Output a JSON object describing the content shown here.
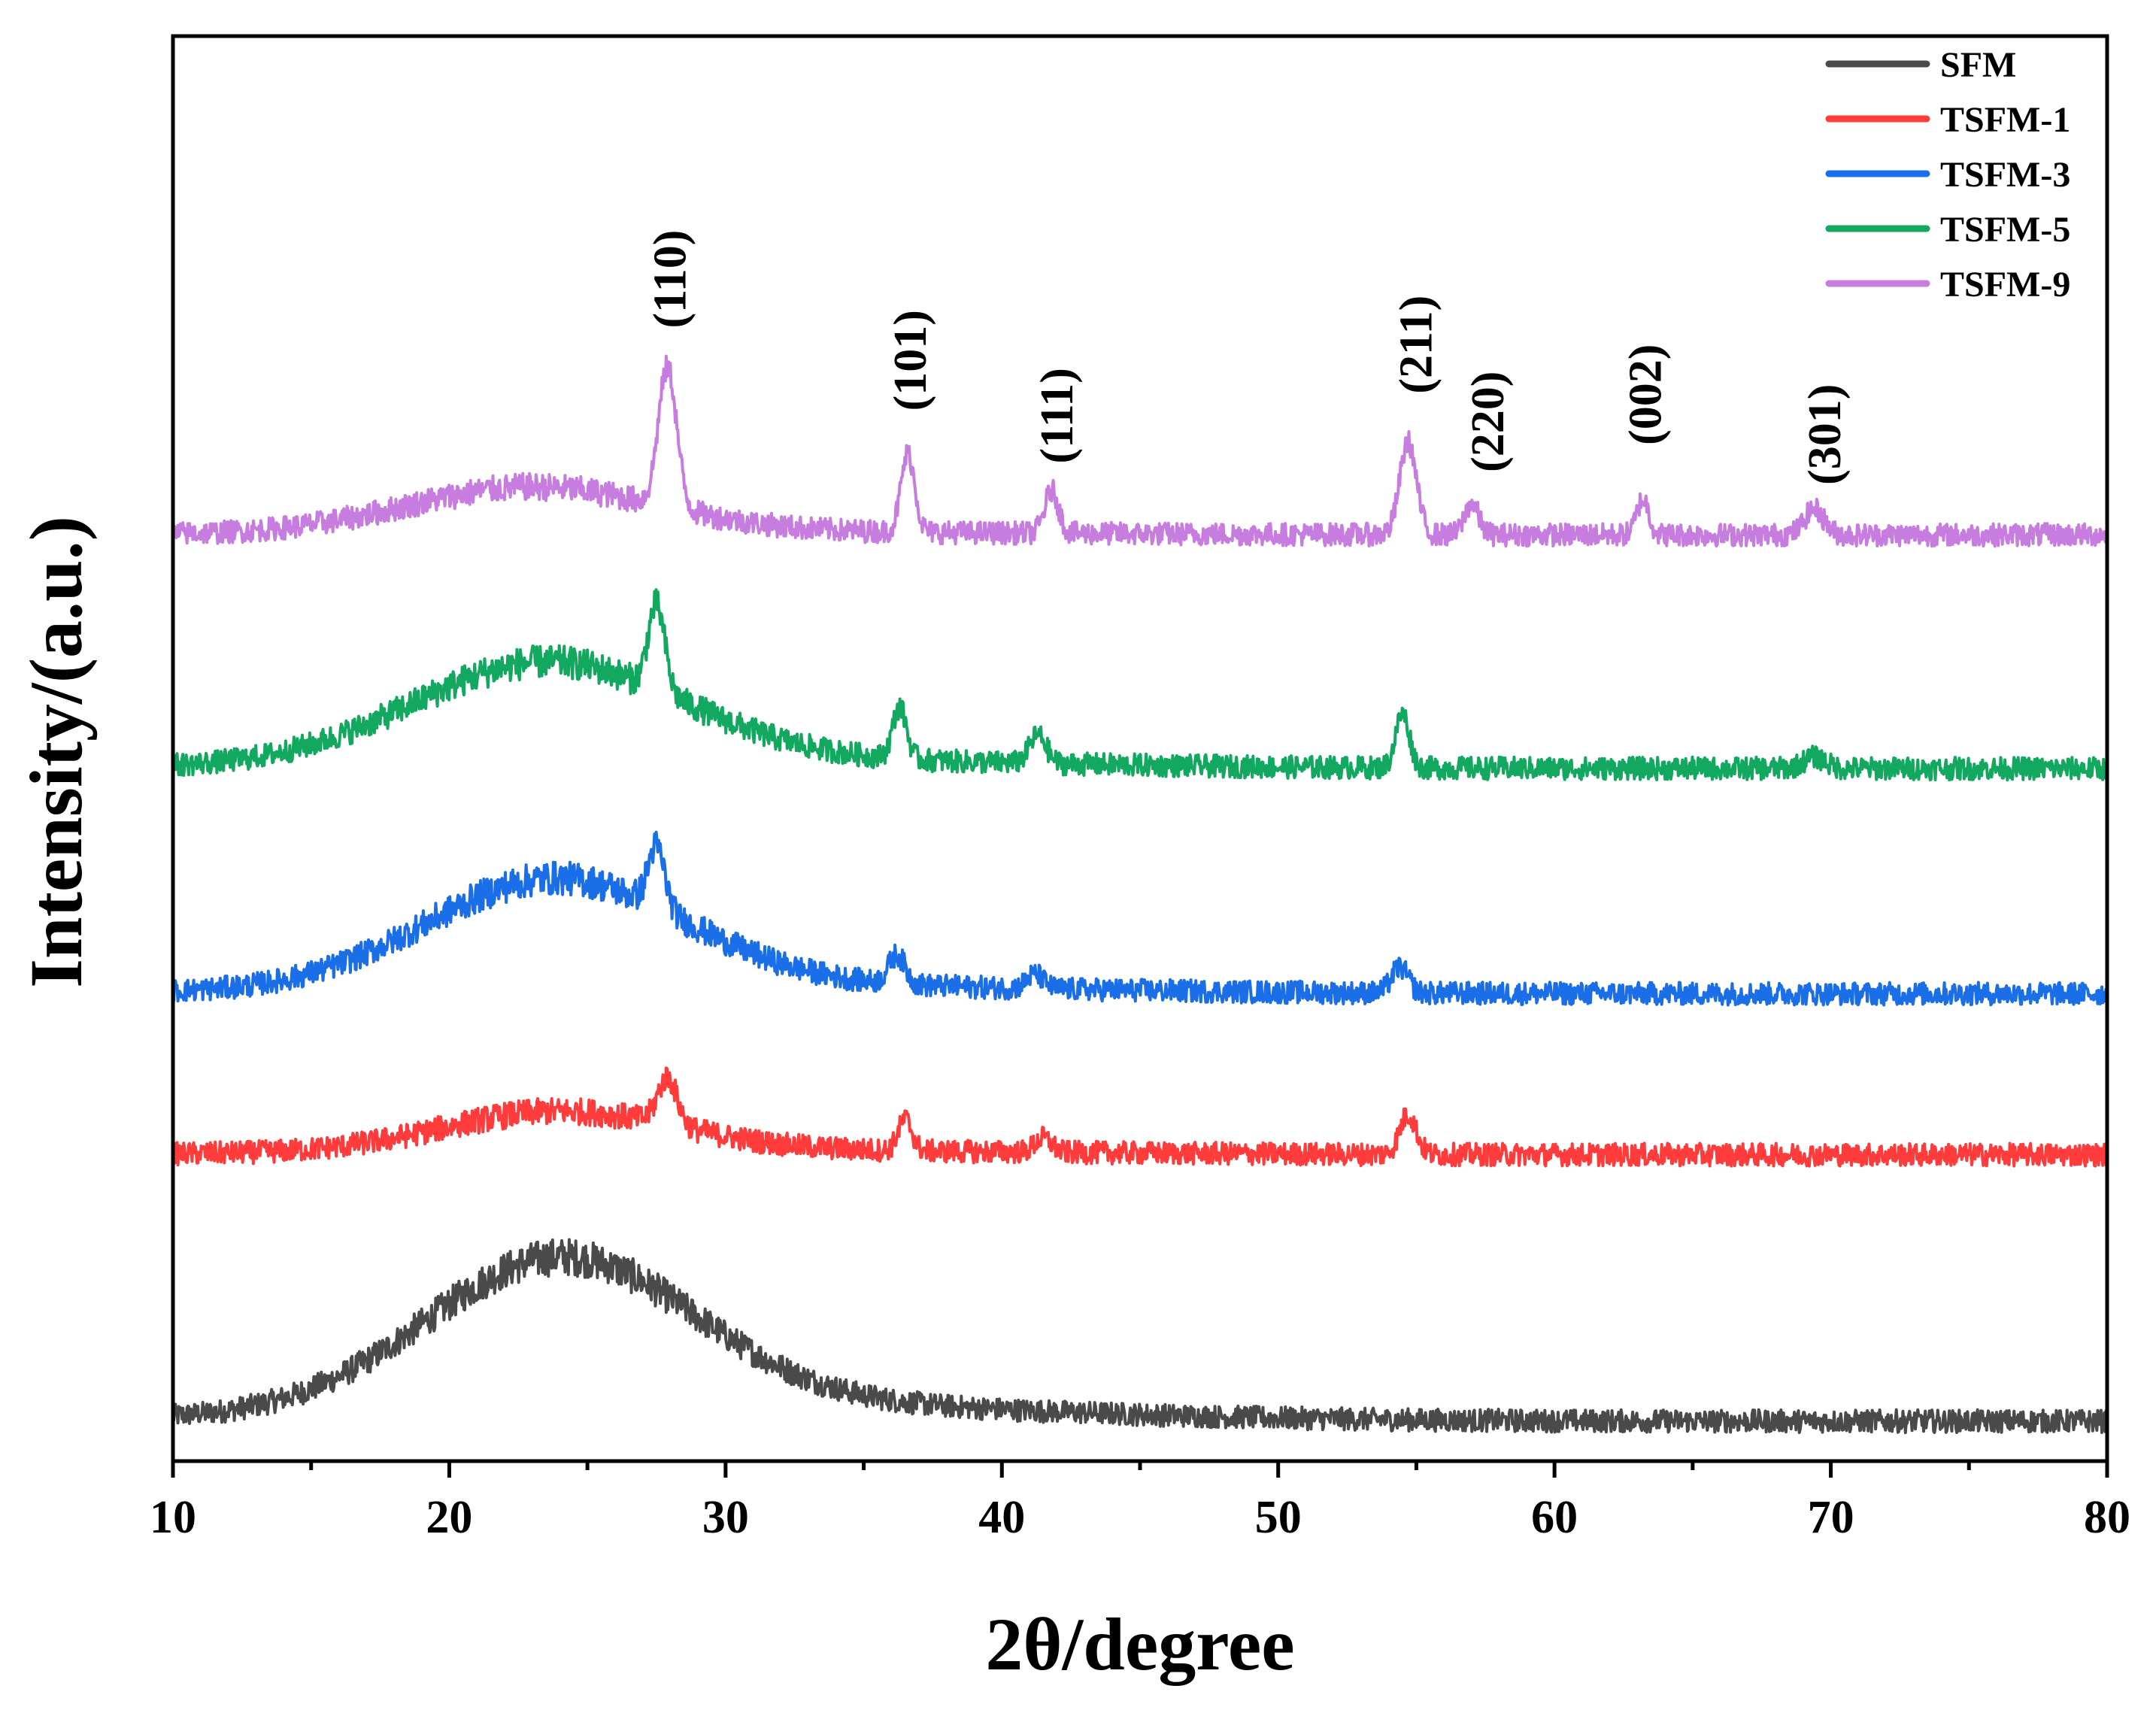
{
  "chart_data": {
    "type": "line",
    "title": "",
    "xlabel": "2θ/degree",
    "ylabel": "Intensity/(a.u.)",
    "xlim": [
      10,
      80
    ],
    "ylim": [
      0,
      100
    ],
    "x_ticks": [
      10,
      20,
      30,
      40,
      50,
      60,
      70,
      80
    ],
    "x_tick_labels": [
      "10",
      "20",
      "30",
      "40",
      "50",
      "60",
      "70",
      "80"
    ],
    "y_ticks_shown": false,
    "grid": false,
    "legend_position": "top-right",
    "noise_amplitude": 1.6,
    "series": [
      {
        "name": "SFM",
        "color": "#4a4a4a",
        "baseline": 2.8,
        "hump": {
          "center": 24,
          "width": 4.8,
          "height": 10.5
        },
        "tail": {
          "center": 30,
          "width": 11,
          "height": 1.2
        },
        "peaks": []
      },
      {
        "name": "TSFM-1",
        "color": "#ff3b3b",
        "baseline": 21.5,
        "hump": {
          "center": 24,
          "width": 4.2,
          "height": 2.8
        },
        "tail": {
          "center": 30,
          "width": 11,
          "height": 0.3
        },
        "peaks": [
          {
            "x": 27.9,
            "height": 3.3,
            "width": 0.35
          },
          {
            "x": 36.5,
            "height": 2.2,
            "width": 0.25
          },
          {
            "x": 41.5,
            "height": 1.0,
            "width": 0.3
          },
          {
            "x": 54.7,
            "height": 2.8,
            "width": 0.3
          }
        ]
      },
      {
        "name": "TSFM-3",
        "color": "#1a6ee8",
        "baseline": 32.8,
        "hump": {
          "center": 23.8,
          "width": 4.6,
          "height": 7.6
        },
        "tail": {
          "center": 30,
          "width": 11,
          "height": 0.6
        },
        "peaks": [
          {
            "x": 27.5,
            "height": 4.3,
            "width": 0.3
          },
          {
            "x": 36.2,
            "height": 2.0,
            "width": 0.3
          },
          {
            "x": 41.2,
            "height": 1.0,
            "width": 0.3
          },
          {
            "x": 54.4,
            "height": 1.8,
            "width": 0.3
          }
        ]
      },
      {
        "name": "TSFM-5",
        "color": "#12a860",
        "baseline": 48.6,
        "hump": {
          "center": 23.5,
          "width": 4.8,
          "height": 7.0
        },
        "tail": {
          "center": 30,
          "width": 11,
          "height": 0.6
        },
        "peaks": [
          {
            "x": 27.5,
            "height": 6.0,
            "width": 0.3
          },
          {
            "x": 36.3,
            "height": 3.6,
            "width": 0.25
          },
          {
            "x": 41.3,
            "height": 2.0,
            "width": 0.3
          },
          {
            "x": 54.5,
            "height": 3.8,
            "width": 0.25
          },
          {
            "x": 69.4,
            "height": 0.8,
            "width": 0.4
          }
        ]
      },
      {
        "name": "TSFM-9",
        "color": "#c77cdf",
        "baseline": 65.0,
        "hump": {
          "center": 23,
          "width": 4.5,
          "height": 3.2
        },
        "tail": {
          "center": 30,
          "width": 11,
          "height": 0.2
        },
        "peaks": [
          {
            "x": 27.9,
            "height": 9.8,
            "width": 0.33
          },
          {
            "x": 36.6,
            "height": 5.5,
            "width": 0.25
          },
          {
            "x": 41.8,
            "height": 3.0,
            "width": 0.25
          },
          {
            "x": 54.7,
            "height": 6.5,
            "width": 0.3
          },
          {
            "x": 57.0,
            "height": 2.2,
            "width": 0.25
          },
          {
            "x": 63.2,
            "height": 2.5,
            "width": 0.22
          },
          {
            "x": 69.4,
            "height": 1.8,
            "width": 0.35
          }
        ]
      }
    ],
    "annotations": [
      {
        "text": "(110)",
        "x": 28.0,
        "y": 79.5
      },
      {
        "text": "(101)",
        "x": 36.7,
        "y": 73.7
      },
      {
        "text": "(111)",
        "x": 42.0,
        "y": 70.0
      },
      {
        "text": "(211)",
        "x": 55.0,
        "y": 74.9
      },
      {
        "text": "(220)",
        "x": 57.6,
        "y": 69.4
      },
      {
        "text": "(002)",
        "x": 63.3,
        "y": 71.3
      },
      {
        "text": "(301)",
        "x": 69.8,
        "y": 68.5
      }
    ]
  }
}
